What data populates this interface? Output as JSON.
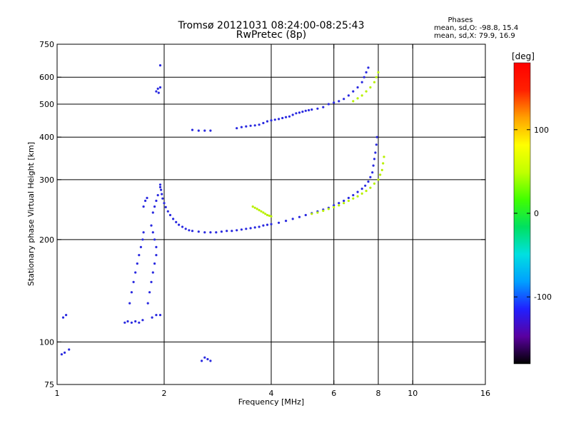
{
  "chart_data": {
    "type": "scatter",
    "title": "Tromsø 20121031 08:24:00-08:25:43",
    "subtitle": "RwPretec (8p)",
    "stats": {
      "heading": "Phases",
      "line1": "mean, sd,O: -98.8, 15.4",
      "line2": "mean, sd,X:  79.9, 16.9"
    },
    "xlabel": "Frequency [MHz]",
    "ylabel": "Stationary phase Virtual Height [km]",
    "x_scale": "log",
    "y_scale": "log",
    "xlim": [
      1,
      16
    ],
    "ylim": [
      75,
      750
    ],
    "x_ticks": [
      {
        "v": 1,
        "label": "1"
      },
      {
        "v": 2,
        "label": "2"
      },
      {
        "v": 4,
        "label": "4"
      },
      {
        "v": 6,
        "label": "6"
      },
      {
        "v": 8,
        "label": "8"
      },
      {
        "v": 10,
        "label": "10"
      },
      {
        "v": 16,
        "label": "16"
      }
    ],
    "y_ticks": [
      {
        "v": 75,
        "label": "75"
      },
      {
        "v": 100,
        "label": "100"
      },
      {
        "v": 200,
        "label": "200"
      },
      {
        "v": 300,
        "label": "300"
      },
      {
        "v": 400,
        "label": "400"
      },
      {
        "v": 500,
        "label": "500"
      },
      {
        "v": 600,
        "label": "600"
      },
      {
        "v": 750,
        "label": "750"
      }
    ],
    "x_grid": [
      2,
      4,
      6,
      8,
      10
    ],
    "y_grid": [
      100,
      200,
      300,
      400,
      500,
      600
    ],
    "colorbar": {
      "label": "[deg]",
      "range": [
        -180,
        180
      ],
      "ticks": [
        {
          "v": 100,
          "label": "100"
        },
        {
          "v": 0,
          "label": "0"
        },
        {
          "v": -100,
          "label": "-100"
        }
      ],
      "stops": [
        "#000000",
        "#5a00a0",
        "#2020ff",
        "#00a0ff",
        "#00e0e0",
        "#00e060",
        "#40ff00",
        "#c0ff00",
        "#ffff00",
        "#ffa000",
        "#ff2000",
        "#ff0000"
      ]
    },
    "series": [
      {
        "trace": "o-ray F2 trace",
        "color": "#2a2ae0",
        "points": [
          [
            1.95,
            290
          ],
          [
            1.96,
            280
          ],
          [
            1.97,
            272
          ],
          [
            1.98,
            264
          ],
          [
            2.0,
            256
          ],
          [
            2.02,
            249
          ],
          [
            2.05,
            242
          ],
          [
            2.08,
            236
          ],
          [
            2.12,
            230
          ],
          [
            2.16,
            225
          ],
          [
            2.2,
            221
          ],
          [
            2.25,
            218
          ],
          [
            2.3,
            215
          ],
          [
            2.35,
            213
          ],
          [
            2.4,
            212
          ],
          [
            2.5,
            211
          ],
          [
            2.6,
            210
          ],
          [
            2.7,
            210
          ],
          [
            2.8,
            210
          ],
          [
            2.9,
            211
          ],
          [
            3.0,
            212
          ],
          [
            3.1,
            212
          ],
          [
            3.2,
            213
          ],
          [
            3.3,
            214
          ],
          [
            3.4,
            215
          ],
          [
            3.5,
            216
          ],
          [
            3.6,
            217
          ],
          [
            3.7,
            218
          ],
          [
            3.8,
            220
          ],
          [
            3.9,
            221
          ],
          [
            4.0,
            222
          ],
          [
            4.2,
            224
          ],
          [
            4.4,
            227
          ],
          [
            4.6,
            230
          ],
          [
            4.8,
            233
          ],
          [
            5.0,
            236
          ],
          [
            5.2,
            239
          ],
          [
            5.4,
            242
          ],
          [
            5.6,
            245
          ],
          [
            5.8,
            248
          ],
          [
            6.0,
            252
          ],
          [
            6.2,
            256
          ],
          [
            6.4,
            260
          ],
          [
            6.6,
            265
          ],
          [
            6.8,
            270
          ],
          [
            7.0,
            276
          ],
          [
            7.2,
            282
          ],
          [
            7.35,
            288
          ],
          [
            7.5,
            296
          ],
          [
            7.6,
            305
          ],
          [
            7.7,
            315
          ],
          [
            7.75,
            330
          ],
          [
            7.8,
            345
          ],
          [
            7.85,
            360
          ],
          [
            7.9,
            380
          ],
          [
            7.93,
            400
          ]
        ]
      },
      {
        "trace": "x-ray F2 trace",
        "color": "#b8f000",
        "points": [
          [
            5.2,
            238
          ],
          [
            5.4,
            240
          ],
          [
            5.6,
            243
          ],
          [
            5.8,
            246
          ],
          [
            6.0,
            249
          ],
          [
            6.2,
            252
          ],
          [
            6.4,
            256
          ],
          [
            6.6,
            260
          ],
          [
            6.8,
            264
          ],
          [
            7.0,
            268
          ],
          [
            7.2,
            273
          ],
          [
            7.4,
            278
          ],
          [
            7.6,
            284
          ],
          [
            7.8,
            292
          ],
          [
            8.0,
            300
          ],
          [
            8.1,
            310
          ],
          [
            8.2,
            320
          ],
          [
            8.25,
            335
          ],
          [
            8.3,
            350
          ]
        ]
      },
      {
        "trace": "x-ray E-region fragment",
        "color": "#b8f000",
        "points": [
          [
            3.55,
            250
          ],
          [
            3.6,
            248
          ],
          [
            3.65,
            246
          ],
          [
            3.7,
            244
          ],
          [
            3.75,
            242
          ],
          [
            3.8,
            240
          ],
          [
            3.85,
            238
          ],
          [
            3.9,
            236
          ],
          [
            3.95,
            235
          ],
          [
            4.0,
            234
          ]
        ]
      },
      {
        "trace": "upper trace",
        "color": "#2a2ae0",
        "points": [
          [
            2.4,
            420
          ],
          [
            2.5,
            418
          ],
          [
            2.6,
            418
          ],
          [
            2.7,
            418
          ],
          [
            3.2,
            425
          ],
          [
            3.3,
            428
          ],
          [
            3.4,
            430
          ],
          [
            3.5,
            432
          ],
          [
            3.6,
            433
          ],
          [
            3.7,
            435
          ],
          [
            3.8,
            440
          ],
          [
            3.9,
            445
          ],
          [
            4.0,
            448
          ],
          [
            4.1,
            450
          ],
          [
            4.2,
            452
          ],
          [
            4.3,
            455
          ],
          [
            4.4,
            458
          ],
          [
            4.5,
            460
          ],
          [
            4.6,
            465
          ],
          [
            4.7,
            470
          ],
          [
            4.8,
            472
          ],
          [
            4.9,
            475
          ],
          [
            5.0,
            478
          ],
          [
            5.1,
            480
          ],
          [
            5.2,
            482
          ],
          [
            5.4,
            485
          ],
          [
            5.6,
            490
          ],
          [
            5.8,
            500
          ],
          [
            6.0,
            505
          ],
          [
            6.2,
            510
          ],
          [
            6.4,
            518
          ],
          [
            6.6,
            530
          ],
          [
            6.8,
            545
          ],
          [
            7.0,
            560
          ],
          [
            7.2,
            580
          ],
          [
            7.3,
            600
          ],
          [
            7.4,
            620
          ],
          [
            7.5,
            640
          ]
        ]
      },
      {
        "trace": "x-ray upper trace",
        "color": "#b8f000",
        "points": [
          [
            6.8,
            510
          ],
          [
            7.0,
            520
          ],
          [
            7.2,
            530
          ],
          [
            7.4,
            545
          ],
          [
            7.6,
            560
          ],
          [
            7.8,
            580
          ],
          [
            7.9,
            600
          ],
          [
            8.0,
            620
          ]
        ]
      },
      {
        "trace": "spread F",
        "color": "#2a2ae0",
        "points": [
          [
            1.55,
            114
          ],
          [
            1.58,
            115
          ],
          [
            1.62,
            114
          ],
          [
            1.66,
            115
          ],
          [
            1.7,
            114
          ],
          [
            1.74,
            116
          ],
          [
            1.85,
            118
          ],
          [
            1.9,
            120
          ],
          [
            1.95,
            120
          ],
          [
            1.6,
            130
          ],
          [
            1.62,
            140
          ],
          [
            1.64,
            150
          ],
          [
            1.66,
            160
          ],
          [
            1.68,
            170
          ],
          [
            1.7,
            180
          ],
          [
            1.72,
            190
          ],
          [
            1.74,
            200
          ],
          [
            1.75,
            210
          ],
          [
            1.8,
            130
          ],
          [
            1.82,
            140
          ],
          [
            1.84,
            150
          ],
          [
            1.86,
            160
          ],
          [
            1.88,
            170
          ],
          [
            1.9,
            180
          ],
          [
            1.9,
            190
          ],
          [
            1.88,
            200
          ],
          [
            1.86,
            210
          ],
          [
            1.84,
            220
          ],
          [
            1.86,
            240
          ],
          [
            1.88,
            250
          ],
          [
            1.9,
            260
          ],
          [
            1.92,
            270
          ],
          [
            1.95,
            285
          ],
          [
            1.03,
            92
          ],
          [
            1.05,
            93
          ],
          [
            1.08,
            95
          ],
          [
            1.04,
            118
          ],
          [
            1.06,
            120
          ],
          [
            2.55,
            88
          ],
          [
            2.6,
            90
          ],
          [
            2.65,
            89
          ],
          [
            2.7,
            88
          ],
          [
            1.9,
            545
          ],
          [
            1.92,
            555
          ],
          [
            1.95,
            560
          ],
          [
            1.93,
            540
          ],
          [
            1.95,
            650
          ],
          [
            1.75,
            250
          ],
          [
            1.77,
            260
          ],
          [
            1.79,
            265
          ]
        ]
      }
    ]
  }
}
